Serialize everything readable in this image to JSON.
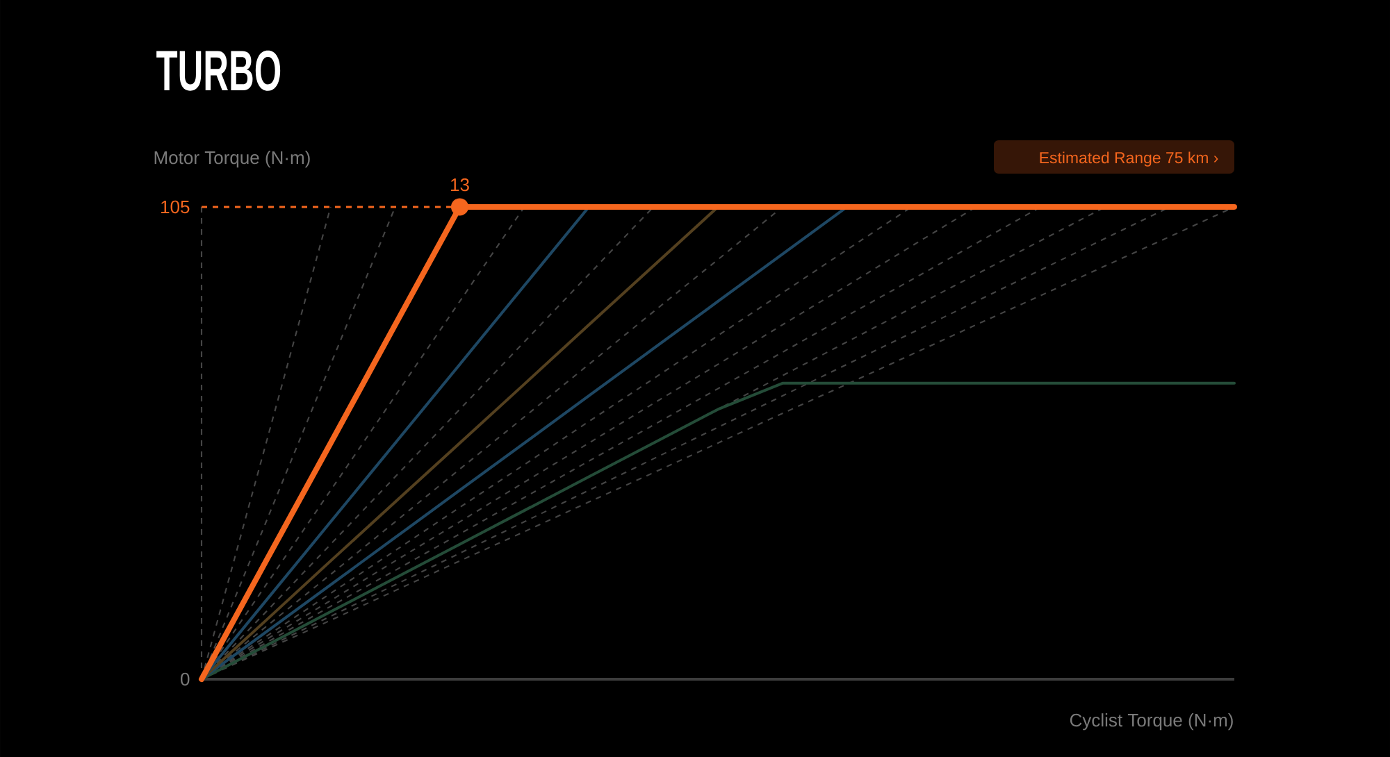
{
  "chart_data": {
    "type": "line",
    "title": "TURBO",
    "ylabel": "Motor Torque (N·m)",
    "xlabel": "Cyclist Torque (N·m)",
    "categories": [
      null,
      null,
      null,
      null,
      null,
      null,
      null,
      null,
      null,
      null,
      null,
      null,
      null,
      null,
      null,
      null,
      null
    ],
    "ylim": [
      0,
      105
    ],
    "yticks": [
      0,
      105
    ],
    "tick_labels": "y",
    "series": [
      {
        "type": "scatter",
        "values": [
          null,
          null,
          null,
          null,
          105,
          null,
          null,
          null,
          null,
          null,
          null,
          null,
          null,
          null,
          null,
          null,
          null
        ],
        "color": "#f5661e",
        "marker": "circle"
      },
      {
        "values": [
          0,
          26.3,
          52.5,
          78.8,
          105,
          105,
          105,
          105,
          105,
          105,
          105,
          105,
          105,
          105,
          105,
          105,
          105
        ],
        "color": "#f5661e",
        "line_style": "solid"
      },
      {
        "values": [
          0,
          17.5,
          35,
          52.5,
          70,
          87.5,
          105,
          null,
          null,
          null,
          null,
          null,
          null,
          null,
          null,
          null,
          null
        ],
        "color": "#1e4763",
        "line_style": "solid"
      },
      {
        "values": [
          0,
          13.1,
          26.3,
          39.4,
          52.5,
          65.6,
          78.8,
          91.9,
          105,
          null,
          null,
          null,
          null,
          null,
          null,
          null,
          null
        ],
        "color": "#54401f",
        "line_style": "solid"
      },
      {
        "values": [
          0,
          10.5,
          21,
          31.5,
          42,
          52.5,
          63,
          73.5,
          84,
          94.5,
          105,
          null,
          null,
          null,
          null,
          null,
          null
        ],
        "color": "#1e4763",
        "line_style": "solid"
      },
      {
        "values": [
          0,
          7.5,
          15,
          22.5,
          30,
          37.5,
          45,
          52.5,
          60,
          65.8,
          65.8,
          65.8,
          65.8,
          65.8,
          65.8,
          65.8,
          65.8
        ],
        "color": "#244c38",
        "line_style": "solid"
      },
      {
        "values": [
          0,
          52.5,
          105,
          null,
          null,
          null,
          null,
          null,
          null,
          null,
          null,
          null,
          null,
          null,
          null,
          null,
          null
        ],
        "color": "#454545",
        "line_style": "dashed"
      },
      {
        "values": [
          0,
          35,
          70,
          105,
          null,
          null,
          null,
          null,
          null,
          null,
          null,
          null,
          null,
          null,
          null,
          null,
          null
        ],
        "color": "#454545",
        "line_style": "dashed"
      },
      {
        "values": [
          0,
          21,
          42,
          63,
          84,
          105,
          null,
          null,
          null,
          null,
          null,
          null,
          null,
          null,
          null,
          null,
          null
        ],
        "color": "#454545",
        "line_style": "dashed"
      },
      {
        "values": [
          0,
          15,
          30,
          45,
          60,
          75,
          90,
          105,
          null,
          null,
          null,
          null,
          null,
          null,
          null,
          null,
          null
        ],
        "color": "#454545",
        "line_style": "dashed"
      },
      {
        "values": [
          0,
          11.7,
          23.3,
          35,
          46.7,
          58.3,
          70,
          81.7,
          93.3,
          105,
          null,
          null,
          null,
          null,
          null,
          null,
          null
        ],
        "color": "#454545",
        "line_style": "dashed"
      },
      {
        "values": [
          0,
          9.5,
          19.1,
          28.6,
          38.2,
          47.7,
          57.3,
          66.8,
          76.4,
          85.9,
          95.5,
          105,
          null,
          null,
          null,
          null,
          null
        ],
        "color": "#454545",
        "line_style": "dashed"
      },
      {
        "values": [
          0,
          8.8,
          17.5,
          26.3,
          35,
          43.8,
          52.5,
          61.3,
          70,
          78.8,
          87.5,
          96.3,
          105,
          null,
          null,
          null,
          null
        ],
        "color": "#454545",
        "line_style": "dashed"
      },
      {
        "values": [
          0,
          8.1,
          16.2,
          24.2,
          32.3,
          40.4,
          48.5,
          56.5,
          64.6,
          72.7,
          80.8,
          88.8,
          96.9,
          105,
          null,
          null,
          null
        ],
        "color": "#454545",
        "line_style": "dashed"
      },
      {
        "values": [
          0,
          7.5,
          15,
          22.5,
          30,
          37.5,
          45,
          52.5,
          60,
          67.5,
          75,
          82.5,
          90,
          97.5,
          105,
          null,
          null
        ],
        "color": "#454545",
        "line_style": "dashed"
      },
      {
        "values": [
          0,
          7,
          14,
          21,
          28,
          35,
          42,
          49,
          56,
          63,
          70,
          77,
          84,
          91,
          98,
          105,
          null
        ],
        "color": "#454545",
        "line_style": "dashed"
      },
      {
        "values": [
          0,
          6.6,
          13.1,
          19.7,
          26.3,
          32.8,
          39.4,
          45.9,
          52.5,
          59.1,
          65.6,
          72.2,
          78.8,
          85.3,
          91.9,
          98.4,
          105
        ],
        "color": "#454545",
        "line_style": "dashed"
      }
    ],
    "ref_lines": [
      {
        "axis": "y",
        "value": 105,
        "color": "#f5661e",
        "line_style": "dashed"
      }
    ],
    "annotations": [
      {
        "text": "13",
        "y": 105
      },
      "Estimated Range 75 km ›"
    ]
  }
}
